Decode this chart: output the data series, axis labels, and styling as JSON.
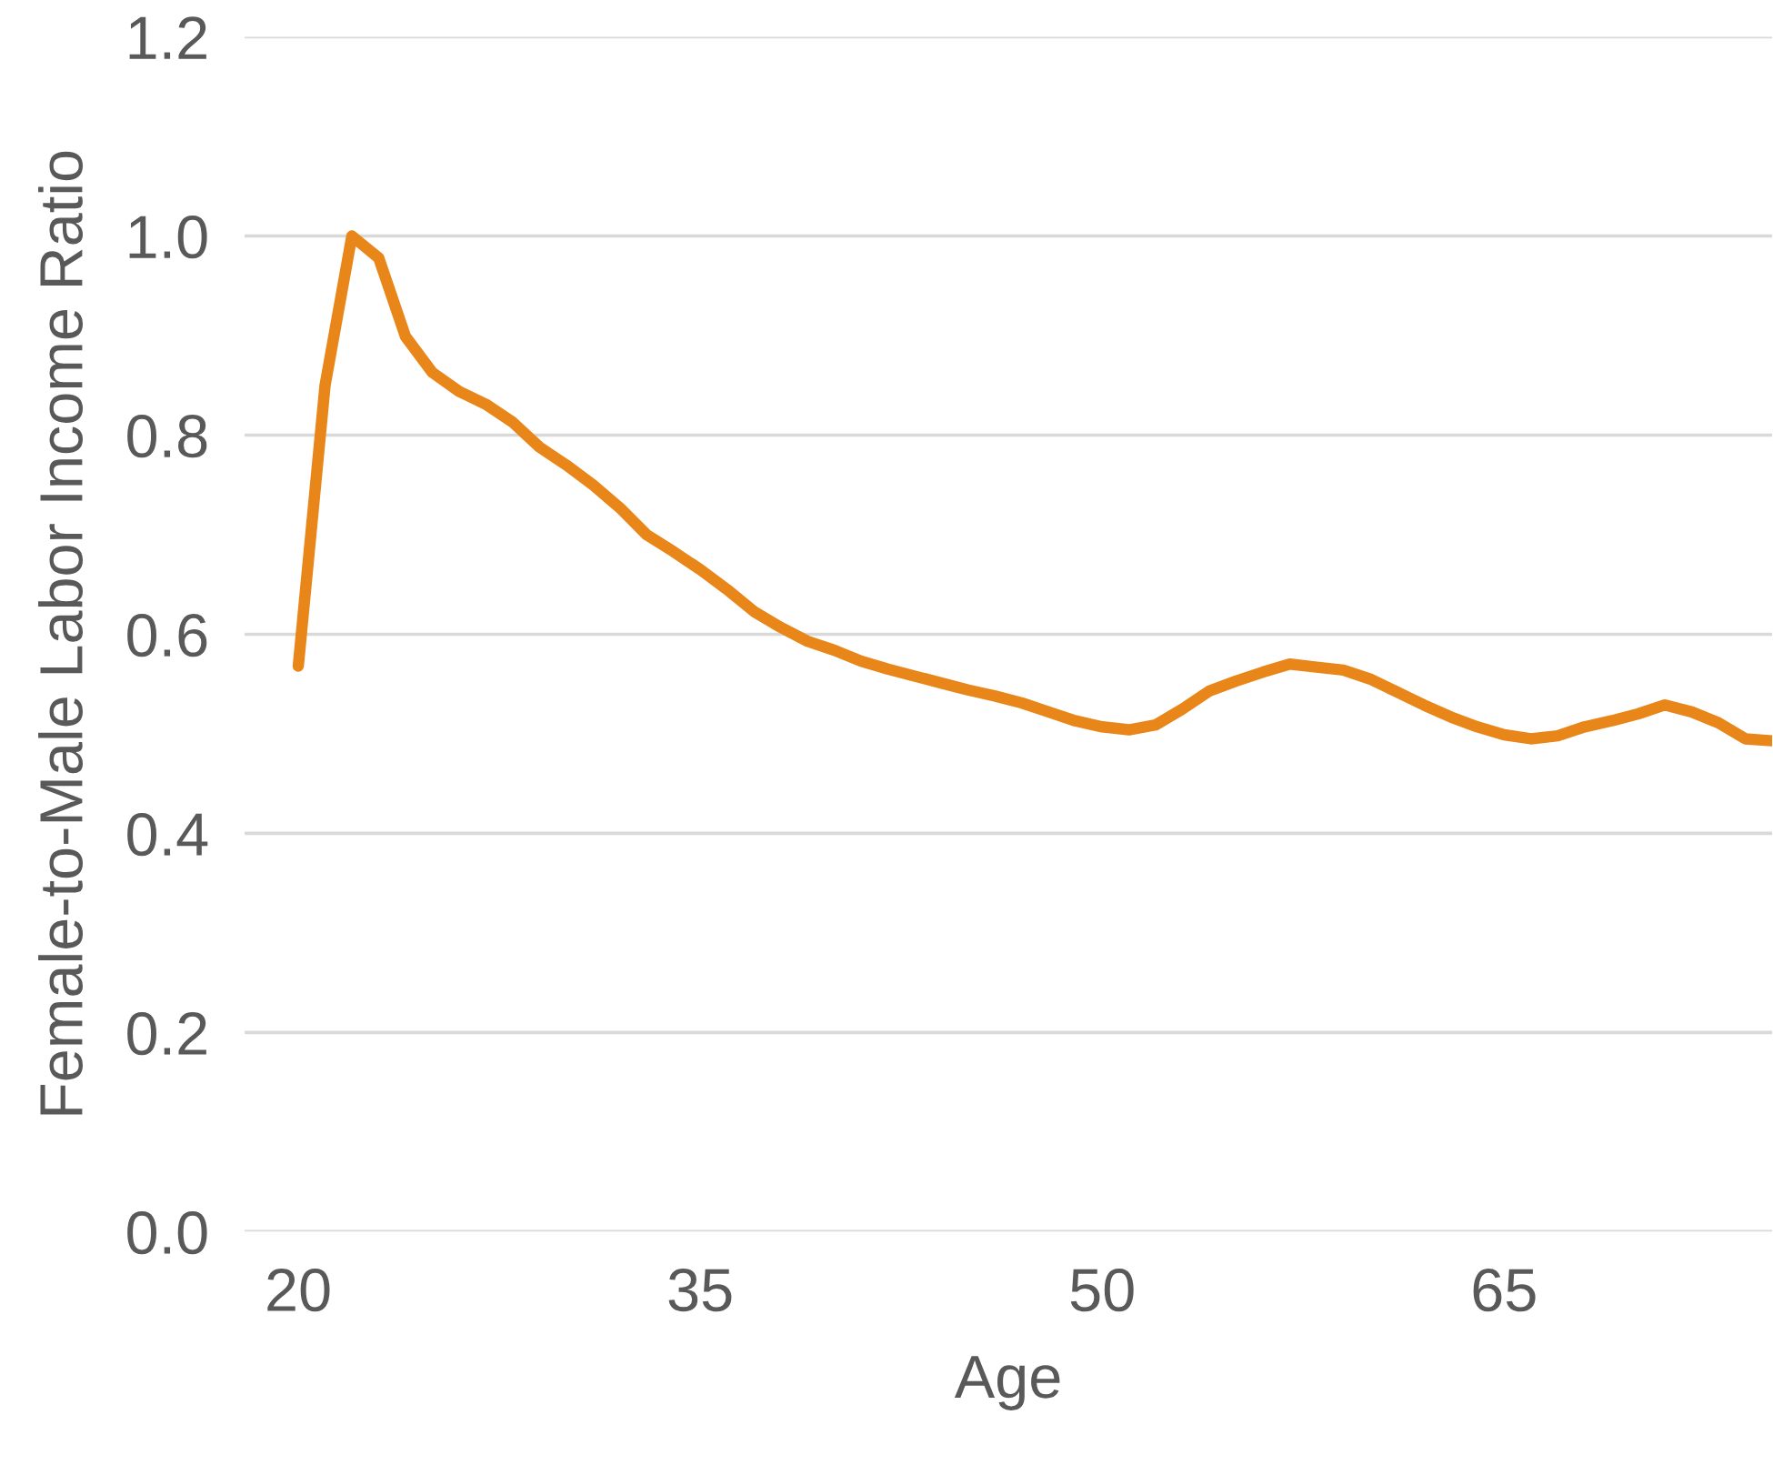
{
  "chart_data": {
    "type": "line",
    "xlabel": "Age",
    "ylabel": "Female-to-Male Labor Income Ratio",
    "x": [
      20,
      21,
      22,
      23,
      24,
      25,
      26,
      27,
      28,
      29,
      30,
      31,
      32,
      33,
      34,
      35,
      36,
      37,
      38,
      39,
      40,
      41,
      42,
      43,
      44,
      45,
      46,
      47,
      48,
      49,
      50,
      51,
      52,
      53,
      54,
      55,
      56,
      57,
      58,
      59,
      60,
      61,
      62,
      63,
      64,
      65,
      66,
      67,
      68,
      69,
      70,
      71,
      72,
      73,
      74,
      75
    ],
    "series": [
      {
        "color": "#e8861a",
        "values": [
          0.568,
          0.85,
          1.0,
          0.978,
          0.899,
          0.863,
          0.844,
          0.831,
          0.813,
          0.788,
          0.77,
          0.75,
          0.727,
          0.7,
          0.683,
          0.665,
          0.645,
          0.623,
          0.607,
          0.593,
          0.584,
          0.573,
          0.565,
          0.558,
          0.551,
          0.544,
          0.538,
          0.531,
          0.522,
          0.513,
          0.507,
          0.504,
          0.509,
          0.525,
          0.543,
          0.553,
          0.562,
          0.57,
          0.567,
          0.564,
          0.555,
          0.542,
          0.529,
          0.517,
          0.507,
          0.499,
          0.495,
          0.498,
          0.507,
          0.513,
          0.52,
          0.529,
          0.522,
          0.511,
          0.495,
          0.493
        ]
      }
    ],
    "xlim": [
      18,
      75
    ],
    "xticks": [
      20,
      35,
      50,
      65
    ],
    "ylim": [
      0,
      1.2
    ],
    "yticks": [
      {
        "value": 0,
        "label": "0.0"
      },
      {
        "value": 0.2,
        "label": "0.2"
      },
      {
        "value": 0.4,
        "label": "0.4"
      },
      {
        "value": 0.6,
        "label": "0.6"
      },
      {
        "value": 0.8,
        "label": "0.8"
      },
      {
        "value": 1.0,
        "label": "1.0"
      },
      {
        "value": 1.2,
        "label": "1.2"
      }
    ],
    "grid": "y",
    "marker": "none",
    "line_style": "solid",
    "legend": false
  }
}
